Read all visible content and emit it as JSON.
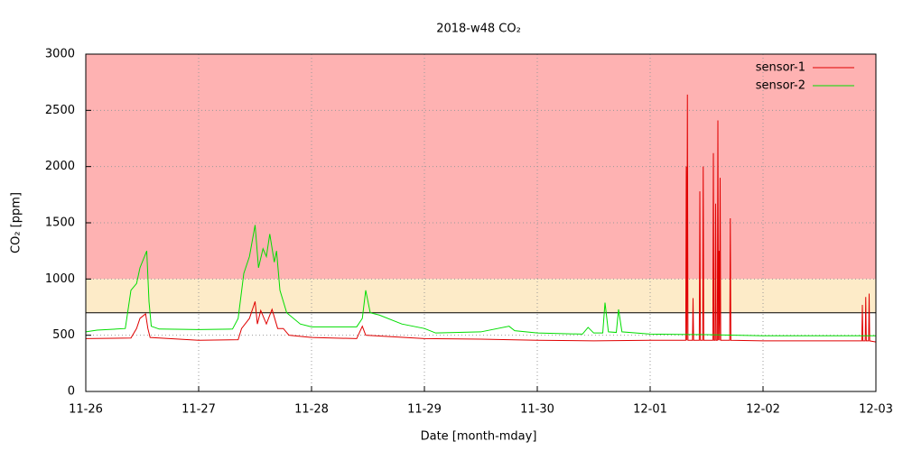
{
  "chart_data": {
    "type": "line",
    "title": "2018-w48 CO₂",
    "xlabel": "Date [month-mday]",
    "ylabel": "CO₂ [ppm]",
    "xlim": [
      0,
      7
    ],
    "xticks": [
      {
        "value": 0,
        "label": "11-26"
      },
      {
        "value": 1,
        "label": "11-27"
      },
      {
        "value": 2,
        "label": "11-28"
      },
      {
        "value": 3,
        "label": "11-29"
      },
      {
        "value": 4,
        "label": "11-30"
      },
      {
        "value": 5,
        "label": "12-01"
      },
      {
        "value": 6,
        "label": "12-02"
      },
      {
        "value": 7,
        "label": "12-03"
      }
    ],
    "ylim": [
      0,
      3000
    ],
    "yticks": [
      0,
      500,
      1000,
      1500,
      2000,
      2500,
      3000
    ],
    "grid": true,
    "legend": "top-right",
    "bands": [
      {
        "from": 1000,
        "to": 3000,
        "color": "#feb2b2"
      },
      {
        "from": 700,
        "to": 1000,
        "color": "#fdebc8"
      }
    ],
    "threshold": 700,
    "series": [
      {
        "name": "sensor-1",
        "color": "#e00000",
        "x": [
          0,
          0.4,
          0.45,
          0.48,
          0.53,
          0.55,
          0.57,
          1.0,
          1.35,
          1.38,
          1.45,
          1.5,
          1.52,
          1.55,
          1.6,
          1.65,
          1.7,
          1.75,
          1.8,
          2.0,
          2.4,
          2.45,
          2.48,
          3.0,
          3.5,
          4.0,
          4.5,
          5.0,
          5.315,
          5.32,
          5.325,
          5.33,
          5.335,
          5.375,
          5.38,
          5.385,
          5.435,
          5.44,
          5.445,
          5.465,
          5.47,
          5.475,
          5.555,
          5.56,
          5.565,
          5.575,
          5.58,
          5.585,
          5.595,
          5.6,
          5.605,
          5.61,
          5.615,
          5.62,
          5.625,
          5.705,
          5.71,
          5.715,
          6.0,
          6.8,
          6.875,
          6.88,
          6.885,
          6.905,
          6.91,
          6.915,
          6.935,
          6.94,
          6.945,
          7.0
        ],
        "values": [
          470,
          475,
          560,
          650,
          690,
          560,
          480,
          455,
          460,
          560,
          650,
          800,
          600,
          720,
          600,
          730,
          560,
          560,
          500,
          480,
          470,
          580,
          500,
          470,
          465,
          455,
          450,
          455,
          455,
          2000,
          455,
          2640,
          455,
          455,
          830,
          455,
          455,
          1780,
          455,
          455,
          2000,
          455,
          455,
          2120,
          455,
          455,
          1670,
          455,
          455,
          2410,
          455,
          1250,
          455,
          1900,
          455,
          455,
          1540,
          455,
          450,
          450,
          450,
          770,
          450,
          450,
          840,
          450,
          450,
          870,
          450,
          440
        ]
      },
      {
        "name": "sensor-2",
        "color": "#00dd00",
        "x": [
          0,
          0.1,
          0.35,
          0.4,
          0.45,
          0.48,
          0.52,
          0.54,
          0.56,
          0.58,
          0.65,
          1.0,
          1.3,
          1.35,
          1.4,
          1.45,
          1.5,
          1.53,
          1.57,
          1.6,
          1.63,
          1.67,
          1.69,
          1.72,
          1.78,
          1.9,
          2.0,
          2.4,
          2.45,
          2.48,
          2.52,
          2.6,
          2.8,
          3.0,
          3.1,
          3.5,
          3.75,
          3.8,
          4.0,
          4.4,
          4.45,
          4.5,
          4.58,
          4.6,
          4.63,
          4.7,
          4.72,
          4.75,
          5.0,
          5.5,
          6.0,
          7.0
        ],
        "values": [
          530,
          545,
          560,
          900,
          960,
          1100,
          1200,
          1250,
          800,
          580,
          555,
          550,
          555,
          650,
          1050,
          1200,
          1480,
          1100,
          1270,
          1200,
          1400,
          1150,
          1250,
          900,
          700,
          600,
          575,
          575,
          650,
          900,
          700,
          680,
          600,
          560,
          520,
          530,
          580,
          540,
          520,
          510,
          570,
          520,
          520,
          790,
          530,
          525,
          730,
          530,
          510,
          505,
          495,
          495
        ]
      }
    ]
  }
}
